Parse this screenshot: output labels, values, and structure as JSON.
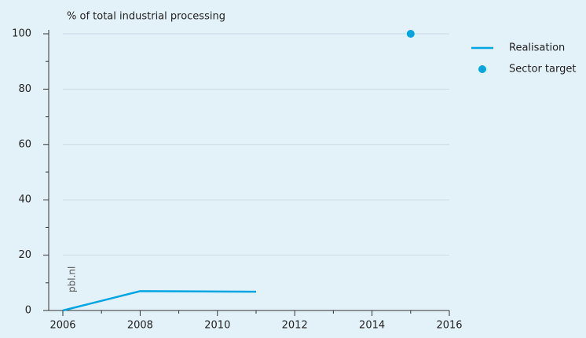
{
  "chart_data": {
    "type": "line",
    "y_axis_label": "% of total industrial processing",
    "watermark": "pbl.nl",
    "xlim": [
      2006,
      2016
    ],
    "xticks": [
      2006,
      2008,
      2010,
      2012,
      2014,
      2016
    ],
    "xminorticks": [
      2007,
      2009,
      2011,
      2013,
      2015
    ],
    "ylim": [
      0,
      100
    ],
    "yticks": [
      0,
      20,
      40,
      60,
      80,
      100
    ],
    "yminorticks": [
      10,
      30,
      50,
      70,
      90
    ],
    "grid": true,
    "legend": "right",
    "series": [
      {
        "name": "Realisation",
        "type": "line",
        "color": "#00a6e2",
        "x": [
          2006,
          2008,
          2011
        ],
        "values": [
          0,
          7,
          6.8
        ]
      },
      {
        "name": "Sector target",
        "type": "scatter",
        "color": "#00a6e2",
        "x": [
          2015
        ],
        "values": [
          100
        ]
      }
    ]
  }
}
